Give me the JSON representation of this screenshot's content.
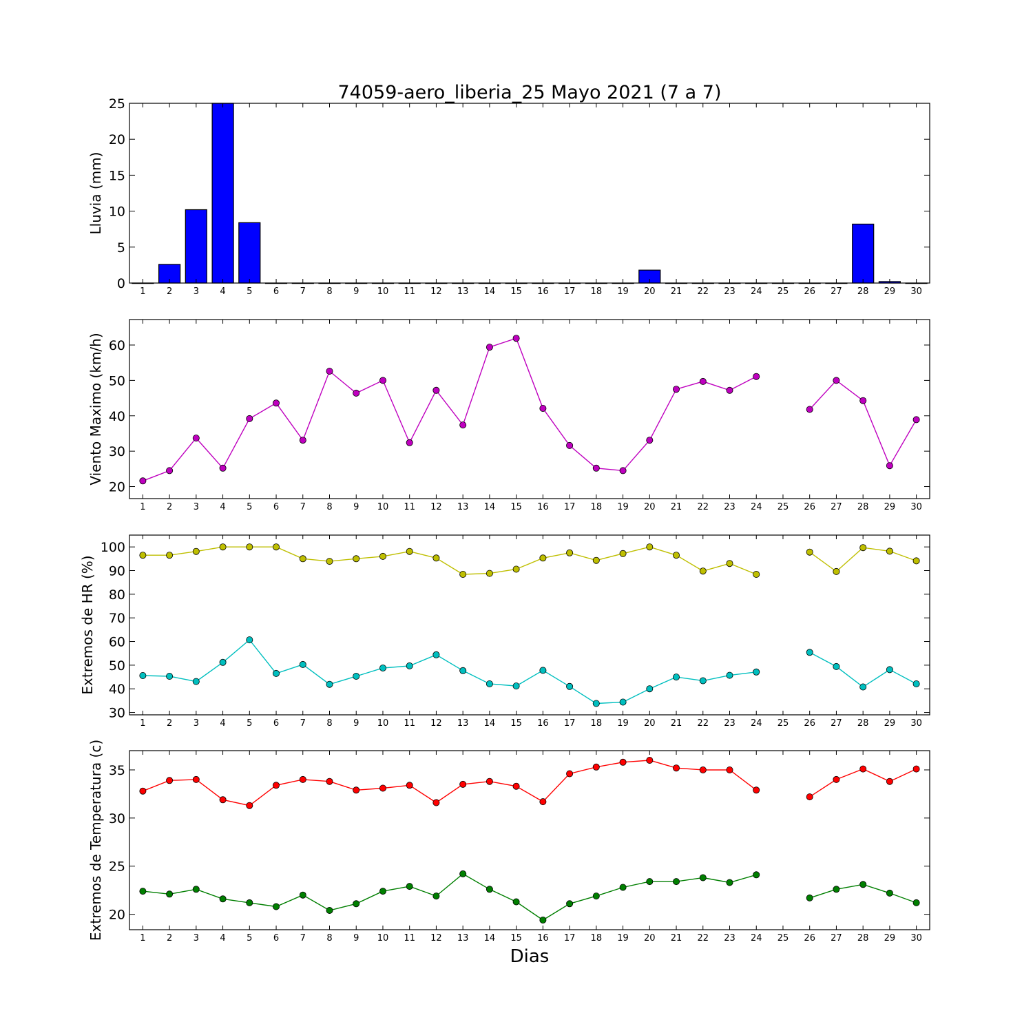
{
  "title": "74059-aero_liberia_25 Mayo 2021  (7 a 7)",
  "xlabel": "Dias",
  "colors": {
    "rain_bar": "#0000ff",
    "wind": "#bf00bf",
    "hr_max": "#bfbf00",
    "hr_min": "#00bfbf",
    "temp_max": "#ff0000",
    "temp_min": "#007f00"
  },
  "chart_data": [
    {
      "type": "bar",
      "ylabel": "Lluvia (mm)",
      "x": [
        1,
        2,
        3,
        4,
        5,
        6,
        7,
        8,
        9,
        10,
        11,
        12,
        13,
        14,
        15,
        16,
        17,
        18,
        19,
        20,
        21,
        22,
        23,
        24,
        25,
        26,
        27,
        28,
        29,
        30
      ],
      "series": [
        {
          "values": [
            0,
            2.6,
            10.2,
            25,
            8.4,
            0,
            0,
            0,
            0,
            0,
            0,
            0,
            0,
            0,
            0,
            0,
            0,
            0,
            0,
            1.8,
            0,
            0,
            0,
            0,
            0,
            0,
            0,
            8.2,
            0.2,
            0
          ]
        }
      ],
      "xlim": [
        0.5,
        30.5
      ],
      "ylim": [
        0,
        25
      ],
      "yticks": [
        0,
        5,
        10,
        15,
        20,
        25
      ]
    },
    {
      "type": "line",
      "ylabel": "Viento Maximo (km/h)",
      "x": [
        1,
        2,
        3,
        4,
        5,
        6,
        7,
        8,
        9,
        10,
        11,
        12,
        13,
        14,
        15,
        16,
        17,
        18,
        19,
        20,
        21,
        22,
        23,
        24,
        25,
        26,
        27,
        28,
        29,
        30
      ],
      "series": [
        {
          "values": [
            21.6,
            24.5,
            33.7,
            25.2,
            39.2,
            43.6,
            33.1,
            52.6,
            46.4,
            50.0,
            32.4,
            47.2,
            37.4,
            59.4,
            61.9,
            42.1,
            31.6,
            25.2,
            24.5,
            33.1,
            47.5,
            49.7,
            47.2,
            51.1,
            null,
            41.8,
            50.0,
            44.3,
            25.9,
            38.9
          ]
        }
      ],
      "xlim": [
        0.5,
        30.5
      ],
      "ylim": [
        16.6,
        67.2
      ],
      "yticks": [
        20,
        30,
        40,
        50,
        60
      ]
    },
    {
      "type": "line",
      "ylabel": "Extremos de HR (%)",
      "x": [
        1,
        2,
        3,
        4,
        5,
        6,
        7,
        8,
        9,
        10,
        11,
        12,
        13,
        14,
        15,
        16,
        17,
        18,
        19,
        20,
        21,
        22,
        23,
        24,
        25,
        26,
        27,
        28,
        29,
        30
      ],
      "series": [
        {
          "values": [
            96.5,
            96.5,
            98.1,
            100,
            100,
            100,
            95,
            93.9,
            95,
            96,
            98.1,
            95.3,
            88.4,
            88.8,
            90.6,
            95.3,
            97.5,
            94.3,
            97.2,
            100,
            96.5,
            89.8,
            93,
            88.4,
            null,
            97.8,
            89.6,
            99.7,
            98.2,
            94.1
          ]
        },
        {
          "values": [
            45.6,
            45.3,
            43.1,
            51.2,
            60.7,
            46.5,
            50.3,
            41.9,
            45.3,
            48.8,
            49.7,
            54.4,
            47.7,
            42.1,
            41.2,
            47.8,
            41,
            33.8,
            34.4,
            40,
            45,
            43.4,
            45.7,
            47.1,
            null,
            55.4,
            49.4,
            40.8,
            48.1,
            42.1
          ]
        }
      ],
      "xlim": [
        0.5,
        30.5
      ],
      "ylim": [
        29,
        105
      ],
      "yticks": [
        30,
        40,
        50,
        60,
        70,
        80,
        90,
        100
      ]
    },
    {
      "type": "line",
      "ylabel": "Extremos de Temperatura (c)",
      "x": [
        1,
        2,
        3,
        4,
        5,
        6,
        7,
        8,
        9,
        10,
        11,
        12,
        13,
        14,
        15,
        16,
        17,
        18,
        19,
        20,
        21,
        22,
        23,
        24,
        25,
        26,
        27,
        28,
        29,
        30
      ],
      "series": [
        {
          "values": [
            32.8,
            33.9,
            34,
            31.9,
            31.3,
            33.4,
            34,
            33.8,
            32.9,
            33.1,
            33.4,
            31.6,
            33.5,
            33.8,
            33.3,
            31.7,
            34.6,
            35.3,
            35.8,
            36,
            35.2,
            35,
            35,
            32.9,
            null,
            32.2,
            34,
            35.1,
            33.8,
            35.1
          ]
        },
        {
          "values": [
            22.4,
            22.1,
            22.6,
            21.6,
            21.2,
            20.8,
            22,
            20.4,
            21.1,
            22.4,
            22.9,
            21.9,
            24.2,
            22.6,
            21.3,
            19.4,
            21.1,
            21.9,
            22.8,
            23.4,
            23.4,
            23.8,
            23.3,
            24.1,
            null,
            21.7,
            22.6,
            23.1,
            22.2,
            21.2
          ]
        }
      ],
      "xlim": [
        0.5,
        30.5
      ],
      "ylim": [
        18.4,
        37.0
      ],
      "yticks": [
        20,
        25,
        30,
        35
      ]
    }
  ]
}
